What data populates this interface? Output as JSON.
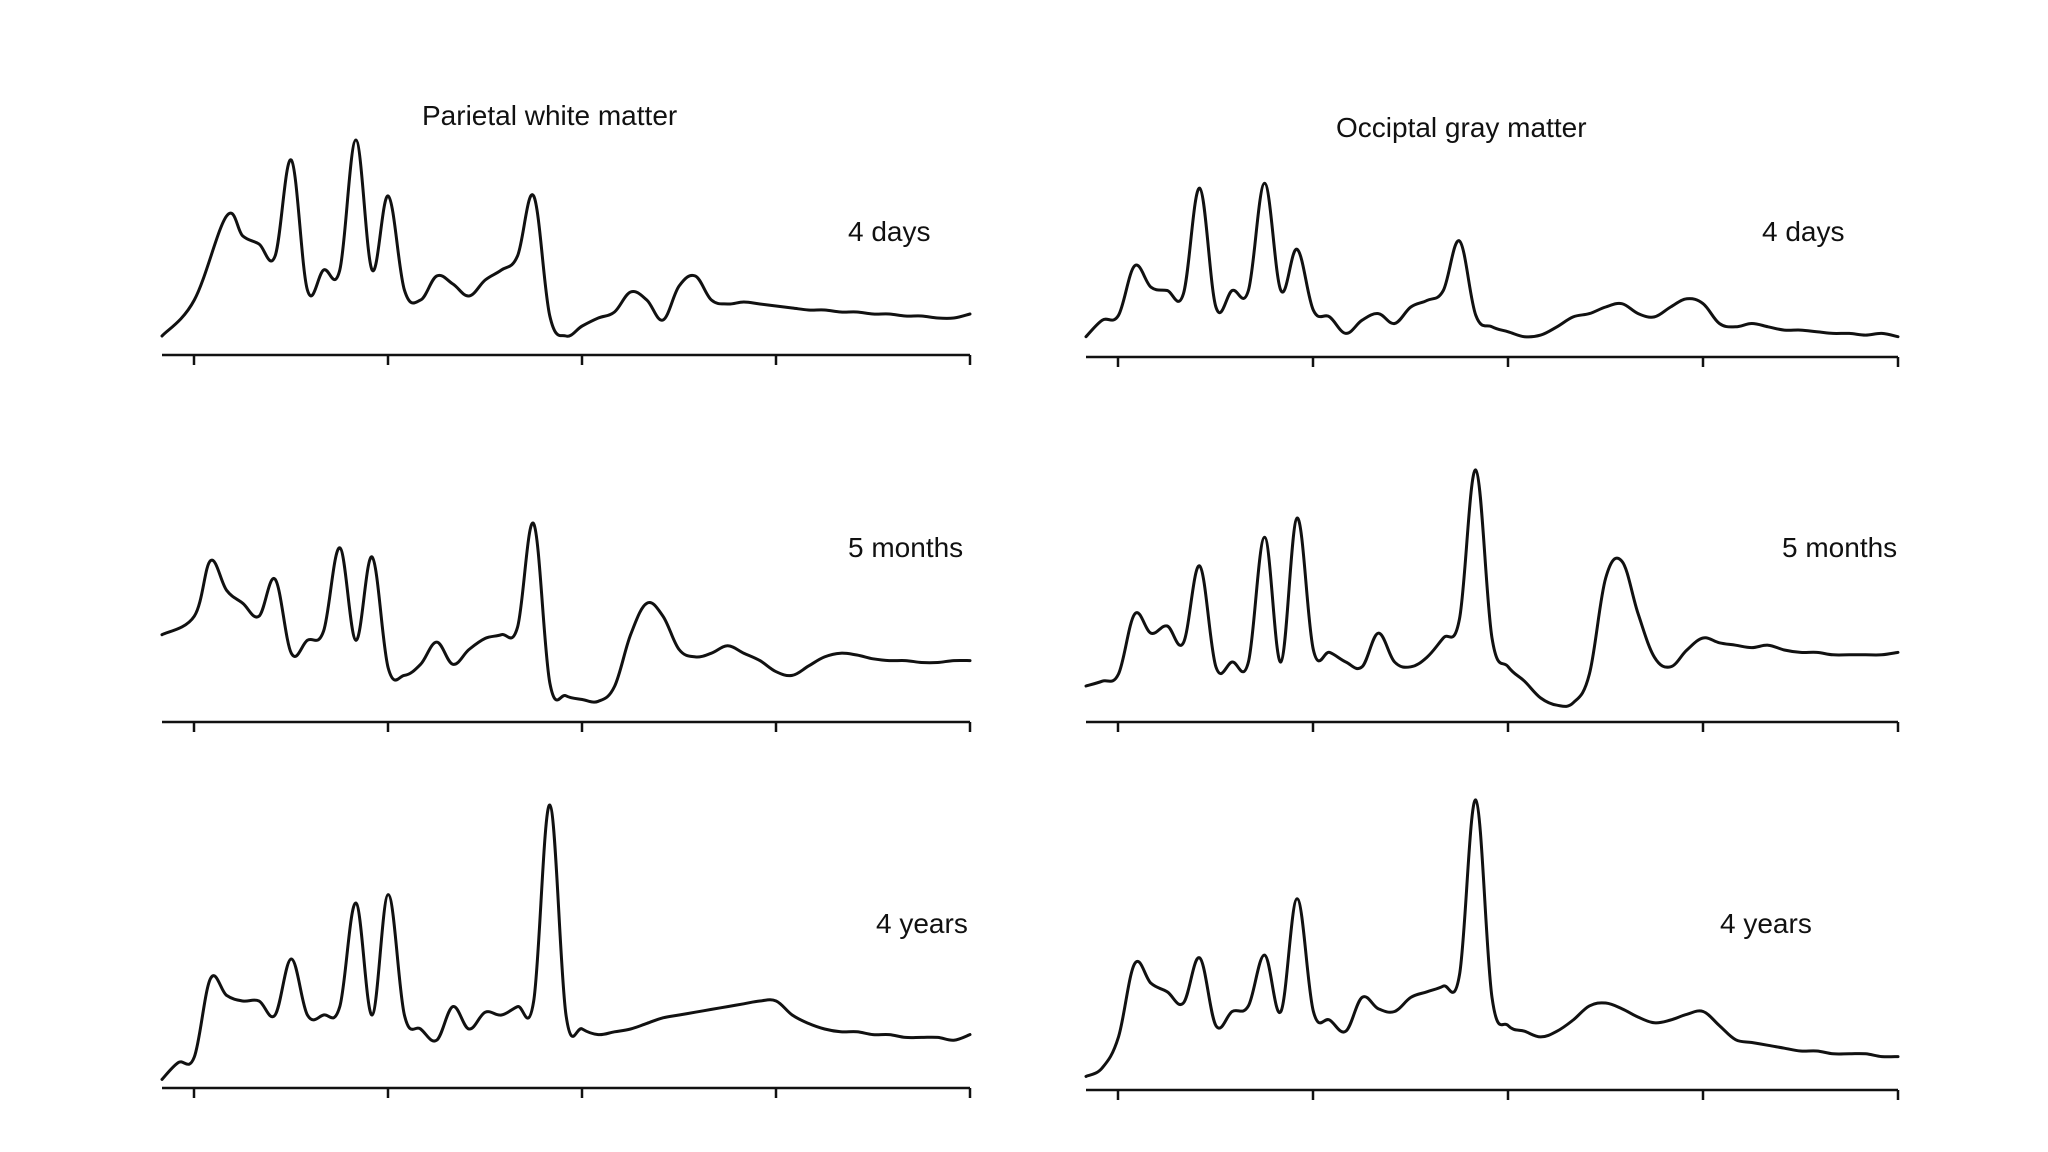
{
  "figure": {
    "columns": [
      {
        "title": "Parietal white matter"
      },
      {
        "title": "Occiptal gray matter"
      }
    ]
  },
  "chart_data": [
    {
      "type": "line",
      "column_title": "Parietal white matter",
      "panel_label": "4 days",
      "x_ticks": 5,
      "x": [
        0,
        4,
        8,
        10,
        12,
        14,
        16,
        18,
        20,
        22,
        24,
        26,
        28,
        30,
        32,
        34,
        36,
        38,
        40,
        42,
        44,
        46,
        48,
        50,
        52,
        54,
        56,
        58,
        60,
        62,
        64,
        66,
        68,
        70,
        72,
        74,
        76,
        78,
        80,
        82,
        84,
        86,
        88,
        90,
        92,
        94,
        96,
        98,
        100
      ],
      "values": [
        0.02,
        0.2,
        0.62,
        0.52,
        0.48,
        0.42,
        0.9,
        0.25,
        0.35,
        0.35,
        1.0,
        0.35,
        0.72,
        0.25,
        0.2,
        0.32,
        0.28,
        0.22,
        0.3,
        0.35,
        0.42,
        0.72,
        0.12,
        0.02,
        0.07,
        0.11,
        0.14,
        0.24,
        0.2,
        0.1,
        0.27,
        0.32,
        0.2,
        0.18,
        0.19,
        0.18,
        0.17,
        0.16,
        0.15,
        0.15,
        0.14,
        0.14,
        0.13,
        0.13,
        0.12,
        0.12,
        0.11,
        0.11,
        0.13
      ],
      "ylim": [
        0,
        1
      ]
    },
    {
      "type": "line",
      "column_title": "Parietal white matter",
      "panel_label": "5 months",
      "x_ticks": 5,
      "x": [
        0,
        4,
        6,
        8,
        10,
        12,
        14,
        16,
        18,
        20,
        22,
        24,
        26,
        28,
        30,
        32,
        34,
        36,
        38,
        40,
        42,
        44,
        46,
        48,
        50,
        52,
        54,
        56,
        58,
        60,
        62,
        64,
        66,
        68,
        70,
        72,
        74,
        76,
        78,
        80,
        82,
        84,
        86,
        88,
        90,
        92,
        94,
        96,
        98,
        100
      ],
      "values": [
        0.38,
        0.48,
        0.78,
        0.62,
        0.55,
        0.48,
        0.68,
        0.28,
        0.35,
        0.4,
        0.85,
        0.35,
        0.8,
        0.2,
        0.16,
        0.22,
        0.34,
        0.22,
        0.3,
        0.36,
        0.38,
        0.42,
        0.98,
        0.12,
        0.05,
        0.03,
        0.02,
        0.1,
        0.38,
        0.55,
        0.48,
        0.3,
        0.26,
        0.28,
        0.32,
        0.28,
        0.24,
        0.18,
        0.16,
        0.21,
        0.26,
        0.28,
        0.27,
        0.25,
        0.24,
        0.24,
        0.23,
        0.23,
        0.24,
        0.24
      ],
      "ylim": [
        0,
        1
      ]
    },
    {
      "type": "line",
      "column_title": "Parietal white matter",
      "panel_label": "4 years",
      "x_ticks": 5,
      "x": [
        0,
        2,
        4,
        6,
        8,
        10,
        12,
        14,
        16,
        18,
        20,
        22,
        24,
        26,
        28,
        30,
        32,
        34,
        36,
        38,
        40,
        42,
        44,
        46,
        48,
        50,
        52,
        54,
        56,
        58,
        60,
        62,
        64,
        66,
        68,
        70,
        72,
        74,
        76,
        78,
        80,
        82,
        84,
        86,
        88,
        90,
        92,
        94,
        96,
        98,
        100
      ],
      "values": [
        0.02,
        0.08,
        0.1,
        0.38,
        0.32,
        0.3,
        0.3,
        0.25,
        0.45,
        0.25,
        0.25,
        0.28,
        0.65,
        0.25,
        0.68,
        0.25,
        0.2,
        0.16,
        0.28,
        0.2,
        0.26,
        0.25,
        0.28,
        0.3,
        1.0,
        0.25,
        0.2,
        0.18,
        0.19,
        0.2,
        0.22,
        0.24,
        0.25,
        0.26,
        0.27,
        0.28,
        0.29,
        0.3,
        0.3,
        0.25,
        0.22,
        0.2,
        0.19,
        0.19,
        0.18,
        0.18,
        0.17,
        0.17,
        0.17,
        0.16,
        0.18
      ],
      "ylim": [
        0,
        1
      ]
    },
    {
      "type": "line",
      "column_title": "Occiptal gray matter",
      "panel_label": "4 days",
      "x_ticks": 5,
      "x": [
        0,
        2,
        4,
        6,
        8,
        10,
        12,
        14,
        16,
        18,
        20,
        22,
        24,
        26,
        28,
        30,
        32,
        34,
        36,
        38,
        40,
        42,
        44,
        46,
        48,
        50,
        52,
        54,
        56,
        58,
        60,
        62,
        64,
        66,
        68,
        70,
        72,
        74,
        76,
        78,
        80,
        82,
        84,
        86,
        88,
        90,
        92,
        94,
        96,
        98,
        100
      ],
      "values": [
        0.02,
        0.12,
        0.15,
        0.45,
        0.32,
        0.3,
        0.28,
        0.92,
        0.2,
        0.3,
        0.3,
        0.95,
        0.3,
        0.55,
        0.18,
        0.14,
        0.04,
        0.12,
        0.16,
        0.1,
        0.2,
        0.24,
        0.3,
        0.6,
        0.15,
        0.08,
        0.05,
        0.02,
        0.03,
        0.08,
        0.14,
        0.16,
        0.2,
        0.22,
        0.16,
        0.14,
        0.2,
        0.25,
        0.22,
        0.1,
        0.08,
        0.1,
        0.08,
        0.06,
        0.06,
        0.05,
        0.04,
        0.04,
        0.03,
        0.04,
        0.02
      ],
      "ylim": [
        0,
        1
      ]
    },
    {
      "type": "line",
      "column_title": "Occiptal gray matter",
      "panel_label": "5 months",
      "x_ticks": 5,
      "x": [
        0,
        2,
        4,
        6,
        8,
        10,
        12,
        14,
        16,
        18,
        20,
        22,
        24,
        26,
        28,
        30,
        32,
        34,
        36,
        38,
        40,
        42,
        44,
        46,
        48,
        50,
        52,
        54,
        56,
        58,
        60,
        62,
        64,
        66,
        68,
        70,
        72,
        74,
        76,
        78,
        80,
        82,
        84,
        86,
        88,
        90,
        92,
        94,
        96,
        98,
        100
      ],
      "values": [
        0.1,
        0.12,
        0.15,
        0.4,
        0.32,
        0.35,
        0.28,
        0.6,
        0.18,
        0.2,
        0.2,
        0.72,
        0.2,
        0.8,
        0.25,
        0.24,
        0.2,
        0.18,
        0.32,
        0.2,
        0.18,
        0.22,
        0.3,
        0.38,
        1.0,
        0.3,
        0.18,
        0.12,
        0.05,
        0.02,
        0.03,
        0.15,
        0.55,
        0.62,
        0.4,
        0.22,
        0.18,
        0.25,
        0.3,
        0.28,
        0.27,
        0.26,
        0.27,
        0.25,
        0.24,
        0.24,
        0.23,
        0.23,
        0.23,
        0.23,
        0.24
      ],
      "ylim": [
        0,
        1
      ]
    },
    {
      "type": "line",
      "column_title": "Occiptal gray matter",
      "panel_label": "4 years",
      "x_ticks": 5,
      "x": [
        0,
        2,
        4,
        6,
        8,
        10,
        12,
        14,
        16,
        18,
        20,
        22,
        24,
        26,
        28,
        30,
        32,
        34,
        36,
        38,
        40,
        42,
        44,
        46,
        48,
        50,
        52,
        54,
        56,
        58,
        60,
        62,
        64,
        66,
        68,
        70,
        72,
        74,
        76,
        78,
        80,
        82,
        84,
        86,
        88,
        90,
        92,
        94,
        96,
        98,
        100
      ],
      "values": [
        0.02,
        0.05,
        0.16,
        0.42,
        0.35,
        0.32,
        0.28,
        0.44,
        0.2,
        0.25,
        0.27,
        0.45,
        0.25,
        0.65,
        0.25,
        0.22,
        0.18,
        0.3,
        0.26,
        0.25,
        0.3,
        0.32,
        0.34,
        0.38,
        1.0,
        0.3,
        0.2,
        0.18,
        0.16,
        0.18,
        0.22,
        0.27,
        0.28,
        0.26,
        0.23,
        0.21,
        0.22,
        0.24,
        0.25,
        0.2,
        0.15,
        0.14,
        0.13,
        0.12,
        0.11,
        0.11,
        0.1,
        0.1,
        0.1,
        0.09,
        0.09
      ],
      "ylim": [
        0,
        1
      ]
    }
  ]
}
